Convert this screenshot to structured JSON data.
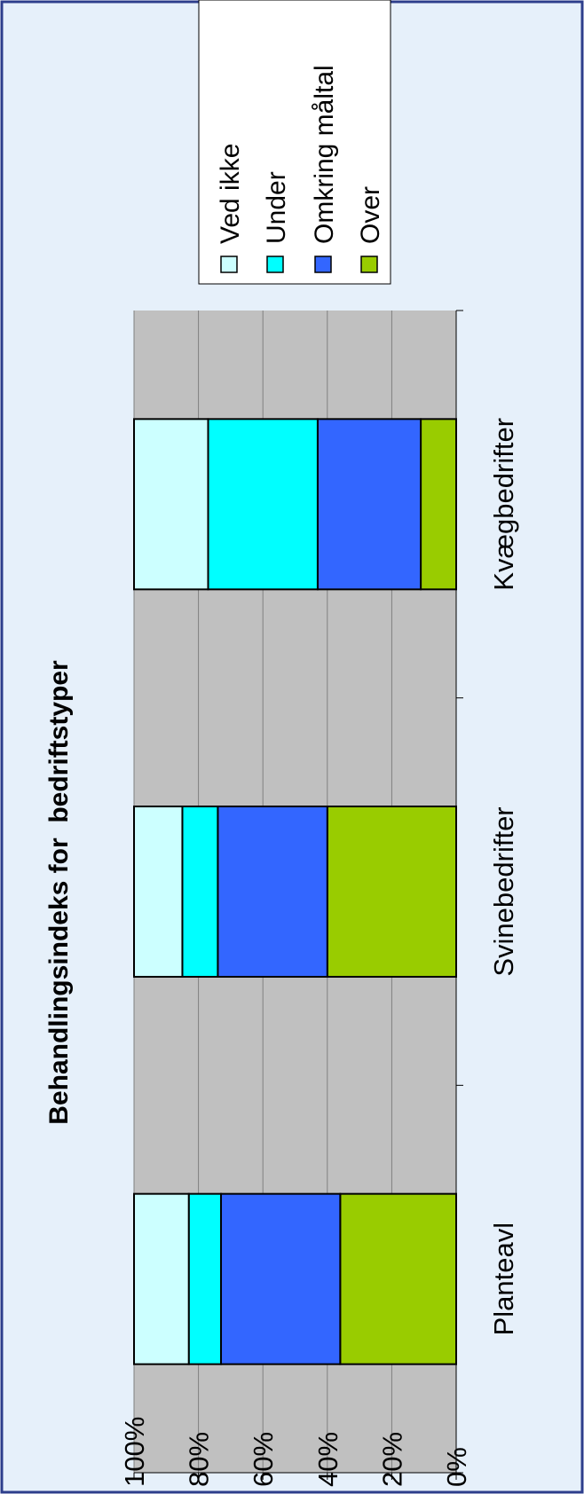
{
  "chart_data": {
    "type": "bar",
    "stacked": true,
    "normalized": true,
    "orientation": "vertical",
    "rotation": "rotated 90 degrees counter-clockwise",
    "title": "Behandlingsindeks for  bedriftstyper",
    "categories": [
      "Planteavl",
      "Svinebedrifter",
      "Kvægbedrifter"
    ],
    "y_ticks": [
      "0%",
      "20%",
      "40%",
      "60%",
      "80%",
      "100%"
    ],
    "ylim": [
      0,
      100
    ],
    "grid": true,
    "legend_position": "right",
    "series": [
      {
        "name": "Over",
        "color": "#99cc00",
        "values": [
          36,
          40,
          11
        ]
      },
      {
        "name": "Omkring måltal",
        "color": "#3366ff",
        "values": [
          37,
          34,
          32
        ]
      },
      {
        "name": "Under",
        "color": "#00ffff",
        "values": [
          10,
          11,
          34
        ]
      },
      {
        "name": "Ved ikke",
        "color": "#ccffff",
        "values": [
          17,
          15,
          23
        ]
      }
    ],
    "legend_order": [
      "Ved ikke",
      "Under",
      "Omkring måltal",
      "Over"
    ],
    "colors": {
      "page_background": "#e6f0fa",
      "border": "#2d3e8c",
      "plot_background": "#c0c0c0",
      "gridline": "#808080",
      "legend_background": "#ffffff"
    }
  }
}
